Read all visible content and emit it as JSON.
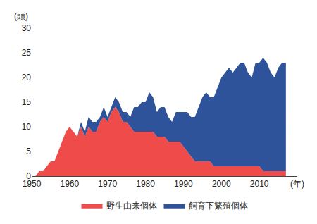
{
  "chart_data": {
    "type": "area",
    "stacked": true,
    "ylabel": "(頭)",
    "x": [
      1951,
      1952,
      1953,
      1954,
      1955,
      1956,
      1957,
      1958,
      1959,
      1960,
      1961,
      1962,
      1963,
      1964,
      1965,
      1966,
      1967,
      1968,
      1969,
      1970,
      1971,
      1972,
      1973,
      1974,
      1975,
      1976,
      1977,
      1978,
      1979,
      1980,
      1981,
      1982,
      1983,
      1984,
      1985,
      1986,
      1987,
      1988,
      1989,
      1990,
      1991,
      1992,
      1993,
      1994,
      1995,
      1996,
      1997,
      1998,
      1999,
      2000,
      2001,
      2002,
      2003,
      2004,
      2005,
      2006,
      2007,
      2008,
      2009,
      2010,
      2011,
      2012,
      2013,
      2014,
      2015,
      2016,
      2017
    ],
    "series": [
      {
        "name": "野生由来個体",
        "color": "#ef4b4b",
        "values": [
          0,
          1,
          1,
          2,
          3,
          3,
          5,
          7,
          9,
          10,
          9,
          8,
          10,
          8,
          10,
          9,
          9,
          11,
          12,
          11,
          13,
          14,
          13,
          11,
          11,
          10,
          9,
          9,
          9,
          9,
          9,
          9,
          8,
          8,
          8,
          7,
          7,
          7,
          7,
          6,
          5,
          4,
          3,
          3,
          3,
          3,
          3,
          2,
          2,
          2,
          2,
          2,
          2,
          2,
          2,
          2,
          2,
          2,
          2,
          2,
          1,
          1,
          1,
          1,
          1,
          1,
          1
        ]
      },
      {
        "name": "飼育下繁殖個体",
        "color": "#2e539a",
        "values": [
          0,
          0,
          0,
          0,
          0,
          0,
          0,
          0,
          0,
          0,
          0,
          0,
          1,
          1,
          2,
          2,
          2,
          1,
          2,
          1,
          1,
          2,
          2,
          2,
          2,
          2,
          5,
          5,
          6,
          6,
          8,
          7,
          5,
          6,
          6,
          5,
          4,
          6,
          6,
          7,
          8,
          8,
          9,
          11,
          13,
          14,
          13,
          14,
          16,
          18,
          19,
          20,
          19,
          20,
          21,
          21,
          19,
          18,
          21,
          21,
          23,
          22,
          20,
          19,
          21,
          22,
          22
        ]
      }
    ],
    "xlim": [
      1950,
      2020
    ],
    "xticks": [
      1950,
      1960,
      1970,
      1980,
      1990,
      2000,
      2010,
      {
        "value": 2020,
        "label": "(年)"
      }
    ],
    "ylim": [
      0,
      30
    ],
    "yticks": [
      0,
      5,
      10,
      15,
      20,
      25,
      30
    ],
    "grid": false,
    "legend": "bottom"
  }
}
